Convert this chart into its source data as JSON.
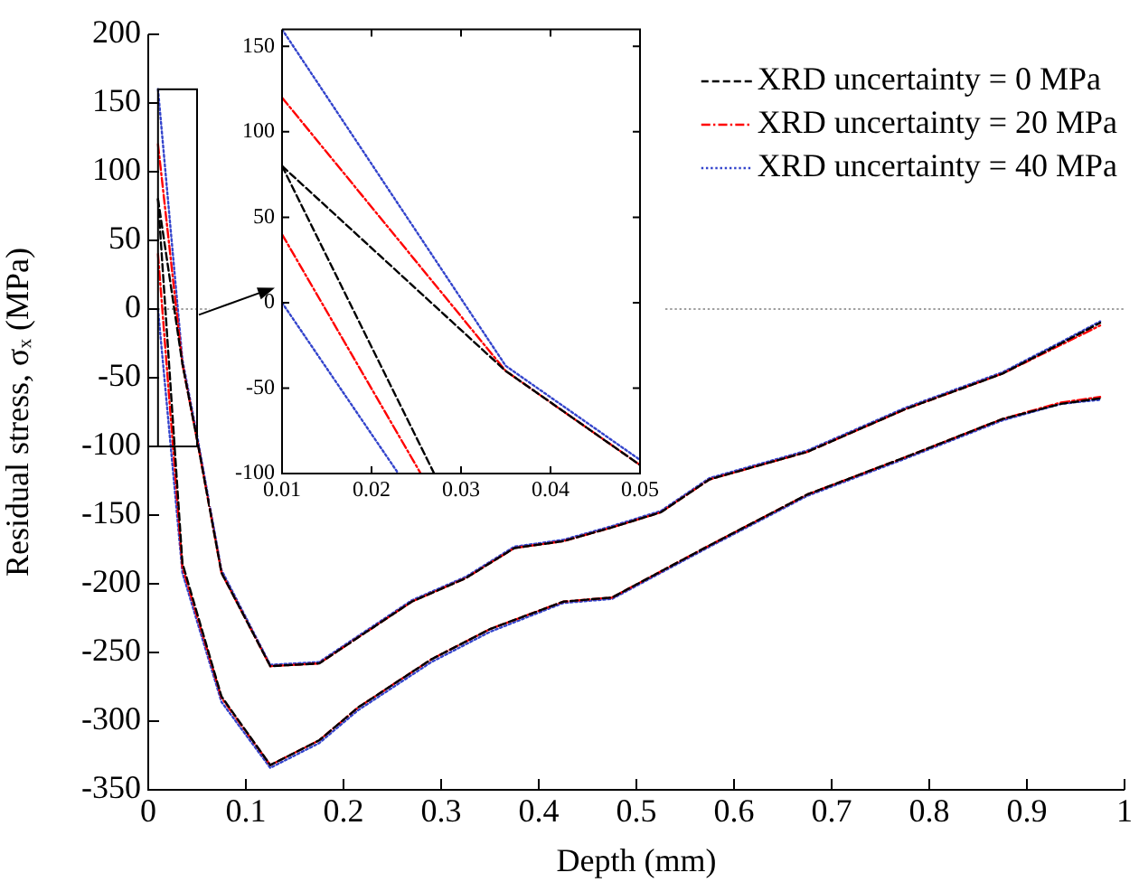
{
  "chart_data": [
    {
      "type": "line",
      "xlabel": "Depth (mm)",
      "ylabel": "Residual stress, σₓ (MPa)",
      "xlim": [
        0,
        1
      ],
      "ylim": [
        -350,
        200
      ],
      "xticks": [
        0,
        0.1,
        0.2,
        0.3,
        0.4,
        0.5,
        0.6,
        0.7,
        0.8,
        0.9,
        1
      ],
      "yticks": [
        -350,
        -300,
        -250,
        -200,
        -150,
        -100,
        -50,
        0,
        50,
        100,
        150,
        200
      ],
      "legend": "top right",
      "ref_lines": [
        {
          "axis": "y",
          "value": 0,
          "color": "#808080",
          "line_style": "dotted"
        }
      ],
      "series": [
        {
          "name": "XRD uncertainty = 0 MPa",
          "color": "#000000",
          "line_style": "dashed",
          "x": [
            0.01,
            0.035,
            0.05,
            0.075,
            0.125,
            0.175,
            0.27,
            0.325,
            0.375,
            0.425,
            0.475,
            0.525,
            0.575,
            0.675,
            0.775,
            0.875,
            0.935,
            0.975
          ],
          "values": [
            80,
            -40,
            -95,
            -192,
            -260,
            -258,
            -213,
            -196,
            -174,
            -169,
            -159,
            -148,
            -124,
            -104,
            -73,
            -47,
            -25,
            -10
          ]
        },
        {
          "name": "XRD uncertainty = 20 MPa",
          "color": "#ff0000",
          "line_style": "dashdot",
          "x": [
            0.01,
            0.035,
            0.05,
            0.075,
            0.125,
            0.175,
            0.27,
            0.325,
            0.375,
            0.425,
            0.475,
            0.525,
            0.575,
            0.675,
            0.775,
            0.875,
            0.935,
            0.975
          ],
          "values": [
            120,
            -40,
            -95,
            -192,
            -260,
            -258,
            -213,
            -196,
            -174,
            -169,
            -159,
            -148,
            -124,
            -104,
            -73,
            -47,
            -26,
            -12
          ]
        },
        {
          "name": "XRD uncertainty = 40 MPa",
          "color": "#3344cc",
          "line_style": "dotted",
          "x": [
            0.01,
            0.035,
            0.05,
            0.075,
            0.125,
            0.175,
            0.27,
            0.325,
            0.375,
            0.425,
            0.475,
            0.525,
            0.575,
            0.675,
            0.775,
            0.875,
            0.935,
            0.975
          ],
          "values": [
            160,
            -37,
            -92,
            -190,
            -259,
            -257,
            -212,
            -195,
            -173,
            -168,
            -158,
            -147,
            -123,
            -103,
            -72,
            -46,
            -24,
            -9
          ]
        },
        {
          "color": "#000000",
          "line_style": "dashed",
          "x": [
            0.01,
            0.035,
            0.075,
            0.125,
            0.175,
            0.215,
            0.29,
            0.35,
            0.425,
            0.475,
            0.525,
            0.575,
            0.675,
            0.775,
            0.875,
            0.935,
            0.975
          ],
          "values": [
            80,
            -185,
            -282,
            -332,
            -314,
            -290,
            -255,
            -233,
            -213,
            -210,
            -191,
            -172,
            -135,
            -108,
            -80,
            -69,
            -65
          ]
        },
        {
          "color": "#ff0000",
          "line_style": "dashdot",
          "x": [
            0.01,
            0.035,
            0.075,
            0.125,
            0.175,
            0.215,
            0.29,
            0.35,
            0.425,
            0.475,
            0.525,
            0.575,
            0.675,
            0.775,
            0.875,
            0.935,
            0.975
          ],
          "values": [
            40,
            -188,
            -283,
            -332,
            -314,
            -290,
            -255,
            -233,
            -213,
            -210,
            -191,
            -172,
            -135,
            -108,
            -80,
            -68,
            -64
          ]
        },
        {
          "color": "#3344cc",
          "line_style": "dotted",
          "x": [
            0.01,
            0.035,
            0.075,
            0.125,
            0.175,
            0.215,
            0.29,
            0.35,
            0.425,
            0.475,
            0.525,
            0.575,
            0.675,
            0.775,
            0.875,
            0.935,
            0.975
          ],
          "values": [
            0,
            -192,
            -286,
            -334,
            -316,
            -292,
            -257,
            -235,
            -214,
            -211,
            -192,
            -173,
            -136,
            -109,
            -81,
            -69,
            -66
          ]
        }
      ]
    },
    {
      "type": "line",
      "xlim": [
        0.01,
        0.05
      ],
      "ylim": [
        -100,
        160
      ],
      "xticks": [
        0.01,
        0.02,
        0.03,
        0.04,
        0.05
      ],
      "yticks": [
        -100,
        -50,
        0,
        50,
        100,
        150
      ],
      "series": [
        {
          "color": "#000000",
          "line_style": "dashed",
          "x": [
            0.01,
            0.035,
            0.05
          ],
          "values": [
            80,
            -40,
            -95
          ]
        },
        {
          "color": "#ff0000",
          "line_style": "dashdot",
          "x": [
            0.01,
            0.035,
            0.05
          ],
          "values": [
            120,
            -40,
            -95
          ]
        },
        {
          "color": "#3344cc",
          "line_style": "dotted",
          "x": [
            0.01,
            0.035,
            0.05
          ],
          "values": [
            160,
            -37,
            -92
          ]
        },
        {
          "color": "#000000",
          "line_style": "dashed",
          "x": [
            0.01,
            0.027
          ],
          "values": [
            80,
            -100
          ]
        },
        {
          "color": "#ff0000",
          "line_style": "dashdot",
          "x": [
            0.01,
            0.0255
          ],
          "values": [
            40,
            -100
          ]
        },
        {
          "color": "#3344cc",
          "line_style": "dotted",
          "x": [
            0.01,
            0.023
          ],
          "values": [
            0,
            -100
          ]
        }
      ]
    }
  ]
}
